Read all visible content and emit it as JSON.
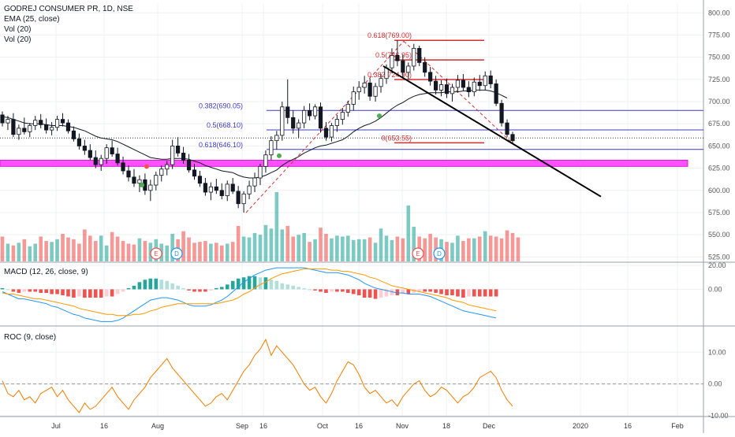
{
  "header": {
    "title": "GODREJ CONSUMER PR, 1D, NSE",
    "ema_label": "EMA (25, close)",
    "vol1_label": "Vol (20)",
    "vol2_label": "Vol (20)"
  },
  "panes": {
    "macd_title": "MACD (12, 26, close, 9)",
    "roc_title": "ROC (9, close)"
  },
  "colors": {
    "up": "#26a69a",
    "down": "#ef5350",
    "candle_body_up": "#ffffff",
    "candle_edge": "#131722",
    "ema": "#131722",
    "fib_blue": "#3c3cc8",
    "fib_red": "#d32f2f",
    "zone": "#ff50ff",
    "trend": "#000000",
    "macd": "#2196f3",
    "signal": "#ff9800",
    "roc": "#f57c00",
    "grid": "#eef0f3",
    "event_E": "#ef5350",
    "event_D": "#2196f3"
  },
  "chart_data": [
    {
      "type": "candlestick",
      "title": "GODREJ CONSUMER PR, 1D, NSE",
      "ylim": [
        520,
        810
      ],
      "y_ticks": [
        "800.00",
        "775.00",
        "750.00",
        "725.00",
        "700.00",
        "675.00",
        "650.00",
        "625.00",
        "600.00",
        "575.00",
        "550.00",
        "525.00"
      ],
      "x_ticks": [
        "Jul",
        "16",
        "Aug",
        "Sep",
        "16",
        "Oct",
        "16",
        "Nov",
        "18",
        "Dec",
        "2020",
        "16",
        "Feb"
      ],
      "candles": [
        {
          "o": 685,
          "h": 689,
          "l": 672,
          "c": 676
        },
        {
          "o": 676,
          "h": 684,
          "l": 668,
          "c": 680
        },
        {
          "o": 680,
          "h": 687,
          "l": 660,
          "c": 663
        },
        {
          "o": 663,
          "h": 674,
          "l": 657,
          "c": 670
        },
        {
          "o": 670,
          "h": 682,
          "l": 663,
          "c": 666
        },
        {
          "o": 666,
          "h": 676,
          "l": 660,
          "c": 673
        },
        {
          "o": 673,
          "h": 684,
          "l": 668,
          "c": 679
        },
        {
          "o": 679,
          "h": 686,
          "l": 670,
          "c": 674
        },
        {
          "o": 674,
          "h": 681,
          "l": 664,
          "c": 668
        },
        {
          "o": 668,
          "h": 677,
          "l": 662,
          "c": 671
        },
        {
          "o": 671,
          "h": 684,
          "l": 667,
          "c": 680
        },
        {
          "o": 680,
          "h": 687,
          "l": 672,
          "c": 676
        },
        {
          "o": 676,
          "h": 680,
          "l": 664,
          "c": 667
        },
        {
          "o": 667,
          "h": 672,
          "l": 655,
          "c": 658
        },
        {
          "o": 658,
          "h": 664,
          "l": 646,
          "c": 650
        },
        {
          "o": 650,
          "h": 657,
          "l": 640,
          "c": 645
        },
        {
          "o": 645,
          "h": 652,
          "l": 634,
          "c": 637
        },
        {
          "o": 637,
          "h": 645,
          "l": 625,
          "c": 629
        },
        {
          "o": 629,
          "h": 640,
          "l": 622,
          "c": 636
        },
        {
          "o": 636,
          "h": 652,
          "l": 630,
          "c": 648
        },
        {
          "o": 648,
          "h": 656,
          "l": 638,
          "c": 641
        },
        {
          "o": 641,
          "h": 648,
          "l": 628,
          "c": 631
        },
        {
          "o": 631,
          "h": 638,
          "l": 618,
          "c": 622
        },
        {
          "o": 622,
          "h": 628,
          "l": 610,
          "c": 615
        },
        {
          "o": 615,
          "h": 624,
          "l": 604,
          "c": 608
        },
        {
          "o": 608,
          "h": 617,
          "l": 598,
          "c": 612
        },
        {
          "o": 612,
          "h": 619,
          "l": 595,
          "c": 600
        },
        {
          "o": 600,
          "h": 612,
          "l": 588,
          "c": 606
        },
        {
          "o": 606,
          "h": 621,
          "l": 600,
          "c": 617
        },
        {
          "o": 617,
          "h": 628,
          "l": 610,
          "c": 624
        },
        {
          "o": 624,
          "h": 633,
          "l": 617,
          "c": 629
        },
        {
          "o": 629,
          "h": 657,
          "l": 624,
          "c": 650
        },
        {
          "o": 650,
          "h": 660,
          "l": 638,
          "c": 642
        },
        {
          "o": 642,
          "h": 649,
          "l": 630,
          "c": 634
        },
        {
          "o": 634,
          "h": 641,
          "l": 620,
          "c": 623
        },
        {
          "o": 623,
          "h": 630,
          "l": 612,
          "c": 616
        },
        {
          "o": 616,
          "h": 622,
          "l": 604,
          "c": 608
        },
        {
          "o": 608,
          "h": 614,
          "l": 594,
          "c": 598
        },
        {
          "o": 598,
          "h": 609,
          "l": 589,
          "c": 604
        },
        {
          "o": 604,
          "h": 613,
          "l": 596,
          "c": 600
        },
        {
          "o": 600,
          "h": 608,
          "l": 590,
          "c": 594
        },
        {
          "o": 594,
          "h": 611,
          "l": 588,
          "c": 607
        },
        {
          "o": 607,
          "h": 614,
          "l": 596,
          "c": 599
        },
        {
          "o": 599,
          "h": 605,
          "l": 580,
          "c": 585
        },
        {
          "o": 585,
          "h": 599,
          "l": 575,
          "c": 596
        },
        {
          "o": 596,
          "h": 611,
          "l": 590,
          "c": 605
        },
        {
          "o": 605,
          "h": 620,
          "l": 598,
          "c": 614
        },
        {
          "o": 614,
          "h": 630,
          "l": 606,
          "c": 627
        },
        {
          "o": 627,
          "h": 645,
          "l": 620,
          "c": 640
        },
        {
          "o": 640,
          "h": 661,
          "l": 634,
          "c": 656
        },
        {
          "o": 656,
          "h": 667,
          "l": 646,
          "c": 662
        },
        {
          "o": 662,
          "h": 700,
          "l": 656,
          "c": 694
        },
        {
          "o": 694,
          "h": 725,
          "l": 675,
          "c": 682
        },
        {
          "o": 682,
          "h": 690,
          "l": 664,
          "c": 670
        },
        {
          "o": 670,
          "h": 680,
          "l": 659,
          "c": 676
        },
        {
          "o": 676,
          "h": 695,
          "l": 670,
          "c": 690
        },
        {
          "o": 690,
          "h": 698,
          "l": 679,
          "c": 684
        },
        {
          "o": 684,
          "h": 697,
          "l": 680,
          "c": 694
        },
        {
          "o": 694,
          "h": 699,
          "l": 665,
          "c": 670
        },
        {
          "o": 670,
          "h": 677,
          "l": 656,
          "c": 660
        },
        {
          "o": 660,
          "h": 676,
          "l": 655,
          "c": 673
        },
        {
          "o": 673,
          "h": 685,
          "l": 666,
          "c": 680
        },
        {
          "o": 680,
          "h": 693,
          "l": 674,
          "c": 688
        },
        {
          "o": 688,
          "h": 701,
          "l": 683,
          "c": 697
        },
        {
          "o": 697,
          "h": 717,
          "l": 690,
          "c": 711
        },
        {
          "o": 711,
          "h": 723,
          "l": 702,
          "c": 716
        },
        {
          "o": 716,
          "h": 729,
          "l": 709,
          "c": 721
        },
        {
          "o": 721,
          "h": 726,
          "l": 701,
          "c": 706
        },
        {
          "o": 706,
          "h": 721,
          "l": 700,
          "c": 717
        },
        {
          "o": 717,
          "h": 731,
          "l": 710,
          "c": 726
        },
        {
          "o": 726,
          "h": 742,
          "l": 720,
          "c": 738
        },
        {
          "o": 738,
          "h": 760,
          "l": 732,
          "c": 752
        },
        {
          "o": 752,
          "h": 769,
          "l": 740,
          "c": 746
        },
        {
          "o": 746,
          "h": 753,
          "l": 728,
          "c": 733
        },
        {
          "o": 733,
          "h": 744,
          "l": 725,
          "c": 740
        },
        {
          "o": 740,
          "h": 765,
          "l": 735,
          "c": 760
        },
        {
          "o": 760,
          "h": 763,
          "l": 740,
          "c": 744
        },
        {
          "o": 744,
          "h": 750,
          "l": 728,
          "c": 733
        },
        {
          "o": 733,
          "h": 739,
          "l": 718,
          "c": 723
        },
        {
          "o": 723,
          "h": 729,
          "l": 708,
          "c": 713
        },
        {
          "o": 713,
          "h": 724,
          "l": 706,
          "c": 719
        },
        {
          "o": 719,
          "h": 726,
          "l": 704,
          "c": 709
        },
        {
          "o": 709,
          "h": 720,
          "l": 700,
          "c": 716
        },
        {
          "o": 716,
          "h": 730,
          "l": 710,
          "c": 724
        },
        {
          "o": 724,
          "h": 731,
          "l": 712,
          "c": 716
        },
        {
          "o": 716,
          "h": 723,
          "l": 705,
          "c": 711
        },
        {
          "o": 711,
          "h": 727,
          "l": 706,
          "c": 722
        },
        {
          "o": 722,
          "h": 730,
          "l": 712,
          "c": 718
        },
        {
          "o": 718,
          "h": 734,
          "l": 713,
          "c": 729
        },
        {
          "o": 729,
          "h": 735,
          "l": 715,
          "c": 720
        },
        {
          "o": 720,
          "h": 725,
          "l": 695,
          "c": 698
        },
        {
          "o": 698,
          "h": 702,
          "l": 672,
          "c": 676
        },
        {
          "o": 676,
          "h": 680,
          "l": 660,
          "c": 663
        },
        {
          "o": 663,
          "h": 666,
          "l": 652,
          "c": 656
        }
      ],
      "ema": [
        683,
        682,
        680,
        678,
        676,
        675,
        675,
        675,
        674,
        673,
        673,
        673,
        672,
        671,
        669,
        667,
        664,
        661,
        659,
        658,
        657,
        655,
        652,
        649,
        646,
        643,
        640,
        637,
        636,
        635,
        635,
        636,
        636,
        636,
        635,
        633,
        631,
        628,
        626,
        624,
        622,
        621,
        620,
        617,
        615,
        614,
        614,
        615,
        617,
        620,
        623,
        628,
        632,
        635,
        638,
        642,
        645,
        648,
        650,
        651,
        653,
        655,
        657,
        661,
        666,
        670,
        673,
        675,
        678,
        682,
        687,
        692,
        696,
        699,
        703,
        706,
        708,
        709,
        710,
        710,
        710,
        711,
        711,
        711,
        712,
        712,
        713,
        713,
        713,
        712,
        710,
        707,
        704
      ],
      "fib_left": [
        {
          "label": "0.382(690.05)",
          "value": 690.05
        },
        {
          "label": "0.5(668.10)",
          "value": 668.1
        },
        {
          "label": "0.618(646.10)",
          "value": 646.1
        }
      ],
      "fib_right": [
        {
          "label": "0.618(769.00)",
          "value": 769.0
        },
        {
          "label": "0.5(746.95)",
          "value": 746.95
        },
        {
          "label": "0.382(724.90)",
          "value": 724.9
        },
        {
          "label": "0(653.55)",
          "value": 653.55
        }
      ],
      "dotted_level": 659,
      "zone": [
        627,
        634
      ],
      "trendline": {
        "from": [
          722,
          7
        ],
        "to": [
          593,
          68
        ]
      },
      "volume": [
        548,
        540,
        538,
        541,
        545,
        537,
        540,
        548,
        543,
        542,
        545,
        551,
        547,
        545,
        540,
        556,
        549,
        543,
        549,
        538,
        553,
        548,
        543,
        540,
        539,
        546,
        543,
        541,
        545,
        540,
        538,
        551,
        545,
        554,
        547,
        541,
        542,
        543,
        540,
        541,
        538,
        540,
        542,
        560,
        548,
        547,
        552,
        550,
        561,
        557,
        598,
        556,
        560,
        548,
        550,
        552,
        542,
        545,
        558,
        551,
        546,
        549,
        548,
        549,
        544,
        545,
        545,
        547,
        541,
        557,
        549,
        544,
        548,
        546,
        583,
        559,
        548,
        546,
        551,
        547,
        545,
        542,
        541,
        549,
        543,
        546,
        546,
        548,
        554,
        549,
        548,
        546,
        555,
        552,
        547
      ],
      "events": [
        {
          "label": "E"
        },
        {
          "label": "D"
        },
        {
          "label": "E"
        },
        {
          "label": "D"
        }
      ],
      "signal_dots": [
        {
          "i": 25,
          "v": 621,
          "kind": "red"
        },
        {
          "i": 24,
          "v": 603,
          "kind": "green"
        },
        {
          "i": 48,
          "v": 633,
          "kind": "green"
        },
        {
          "i": 66,
          "v": 684,
          "kind": "green"
        }
      ]
    },
    {
      "type": "macd",
      "title": "MACD (12, 26, close, 9)",
      "ylim": [
        -30,
        22
      ],
      "y_ticks": [
        "20.00",
        "0.00"
      ],
      "macd": [
        -2,
        -4,
        -6,
        -8,
        -8,
        -9,
        -10,
        -11,
        -12,
        -14,
        -15,
        -17,
        -19,
        -21,
        -22,
        -24,
        -25,
        -26,
        -27,
        -27,
        -27,
        -26,
        -24,
        -21,
        -18,
        -15,
        -12,
        -9,
        -8,
        -7,
        -7,
        -8,
        -9,
        -11,
        -13,
        -14,
        -14,
        -14,
        -13,
        -11,
        -9,
        -6,
        -2,
        2,
        6,
        9,
        12,
        14,
        16,
        17,
        18,
        18,
        18,
        18,
        18,
        18,
        17,
        16,
        15,
        14,
        14,
        14,
        13,
        12,
        10,
        8,
        5,
        3,
        1,
        0,
        -1,
        -2,
        -3,
        -3,
        -4,
        -4,
        -4,
        -5,
        -6,
        -8,
        -10,
        -12,
        -14,
        -16,
        -18,
        -19,
        -20,
        -21,
        -22,
        -23,
        -24
      ],
      "signal": [
        -3,
        -4,
        -4,
        -5,
        -6,
        -7,
        -8,
        -8,
        -9,
        -10,
        -11,
        -12,
        -13,
        -14,
        -16,
        -17,
        -18,
        -19,
        -20,
        -21,
        -21,
        -22,
        -22,
        -22,
        -21,
        -21,
        -20,
        -18,
        -17,
        -15,
        -14,
        -13,
        -12,
        -12,
        -12,
        -12,
        -12,
        -12,
        -12,
        -12,
        -11,
        -10,
        -9,
        -7,
        -4,
        -2,
        1,
        4,
        6,
        9,
        11,
        13,
        14,
        15,
        16,
        17,
        17,
        17,
        17,
        17,
        16,
        16,
        15,
        15,
        14,
        13,
        12,
        10,
        9,
        7,
        5,
        3,
        2,
        1,
        0,
        -1,
        -2,
        -3,
        -4,
        -5,
        -6,
        -7,
        -9,
        -10,
        -11,
        -13,
        -14,
        -15,
        -16,
        -17,
        -18
      ]
    },
    {
      "type": "line",
      "title": "ROC (9, close)",
      "ylim": [
        -10,
        18
      ],
      "y_ticks": [
        "10.00",
        "0.00",
        "-10.00"
      ],
      "values": [
        1,
        -3,
        -4,
        -2,
        -5,
        -4,
        -6,
        -3,
        -2,
        -1,
        -4,
        -2,
        -5,
        -7,
        -9,
        -6,
        -8,
        -7,
        -5,
        -3,
        -1,
        -4,
        -6,
        -8,
        -5,
        -3,
        -1,
        2,
        4,
        6,
        8,
        5,
        3,
        1,
        -1,
        -3,
        -5,
        -7,
        -6,
        -4,
        -3,
        -5,
        -2,
        1,
        4,
        6,
        9,
        11,
        14,
        9,
        12,
        10,
        8,
        6,
        3,
        0,
        -2,
        -1,
        -4,
        -6,
        -3,
        1,
        4,
        7,
        6,
        3,
        -1,
        -3,
        -2,
        -4,
        -6,
        -5,
        -7,
        -4,
        -2,
        0,
        1,
        -2,
        -4,
        -3,
        -1,
        -2,
        -4,
        -6,
        -4,
        -3,
        -1,
        2,
        3,
        4,
        2,
        -2,
        -5,
        -7,
        -6
      ]
    }
  ]
}
